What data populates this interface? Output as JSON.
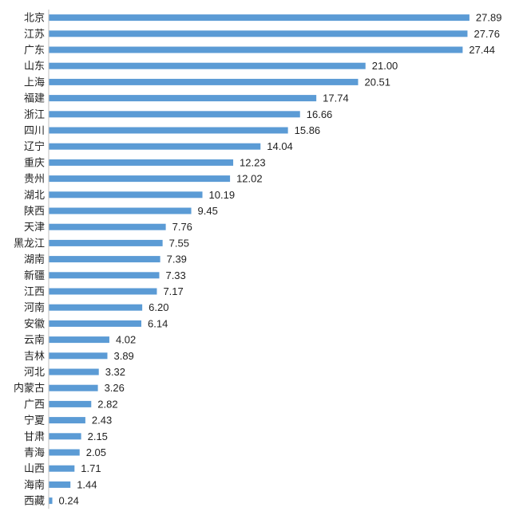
{
  "chart_data": {
    "type": "bar",
    "orientation": "horizontal",
    "categories": [
      "北京",
      "江苏",
      "广东",
      "山东",
      "上海",
      "福建",
      "浙江",
      "四川",
      "辽宁",
      "重庆",
      "贵州",
      "湖北",
      "陕西",
      "天津",
      "黑龙江",
      "湖南",
      "新疆",
      "江西",
      "河南",
      "安徽",
      "云南",
      "吉林",
      "河北",
      "内蒙古",
      "广西",
      "宁夏",
      "甘肃",
      "青海",
      "山西",
      "海南",
      "西藏"
    ],
    "values": [
      27.89,
      27.76,
      27.44,
      21.0,
      20.51,
      17.74,
      16.66,
      15.86,
      14.04,
      12.23,
      12.02,
      10.19,
      9.45,
      7.76,
      7.55,
      7.39,
      7.33,
      7.17,
      6.2,
      6.14,
      4.02,
      3.89,
      3.32,
      3.26,
      2.82,
      2.43,
      2.15,
      2.05,
      1.71,
      1.44,
      0.24
    ],
    "value_labels": [
      "27.89",
      "27.76",
      "27.44",
      "21.00",
      "20.51",
      "17.74",
      "16.66",
      "15.86",
      "14.04",
      "12.23",
      "12.02",
      "10.19",
      "9.45",
      "7.76",
      "7.55",
      "7.39",
      "7.33",
      "7.17",
      "6.20",
      "6.14",
      "4.02",
      "3.89",
      "3.32",
      "3.26",
      "2.82",
      "2.43",
      "2.15",
      "2.05",
      "1.71",
      "1.44",
      "0.24"
    ],
    "title": "",
    "xlabel": "",
    "ylabel": "",
    "xlim": [
      0,
      28
    ],
    "grid": false,
    "legend": "none",
    "bar_color": "#5b9bd5",
    "axis_color": "#bfbfbf"
  }
}
